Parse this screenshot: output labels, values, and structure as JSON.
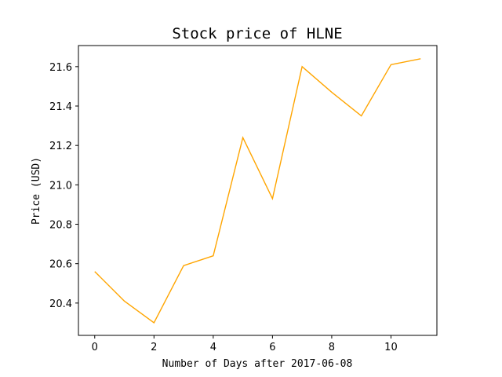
{
  "chart_data": {
    "type": "line",
    "title": "Stock price of HLNE",
    "xlabel": "Number of Days after 2017-06-08",
    "ylabel": "Price (USD)",
    "x": [
      0,
      1,
      2,
      3,
      4,
      5,
      6,
      7,
      8,
      9,
      10,
      11
    ],
    "series": [
      {
        "values": [
          20.56,
          20.41,
          20.3,
          20.59,
          20.64,
          21.24,
          20.93,
          21.6,
          21.47,
          21.35,
          21.61,
          21.64
        ],
        "color": "#ffa500"
      }
    ],
    "xlim": [
      -0.55,
      11.55
    ],
    "ylim": [
      20.236,
      21.707
    ],
    "xticks": [
      0,
      2,
      4,
      6,
      8,
      10
    ],
    "yticks": [
      20.4,
      20.6,
      20.8,
      21.0,
      21.2,
      21.4,
      21.6
    ],
    "ytick_labels": [
      "20.4",
      "20.6",
      "20.8",
      "21.0",
      "21.2",
      "21.4",
      "21.6"
    ],
    "grid": false,
    "legend": false
  }
}
